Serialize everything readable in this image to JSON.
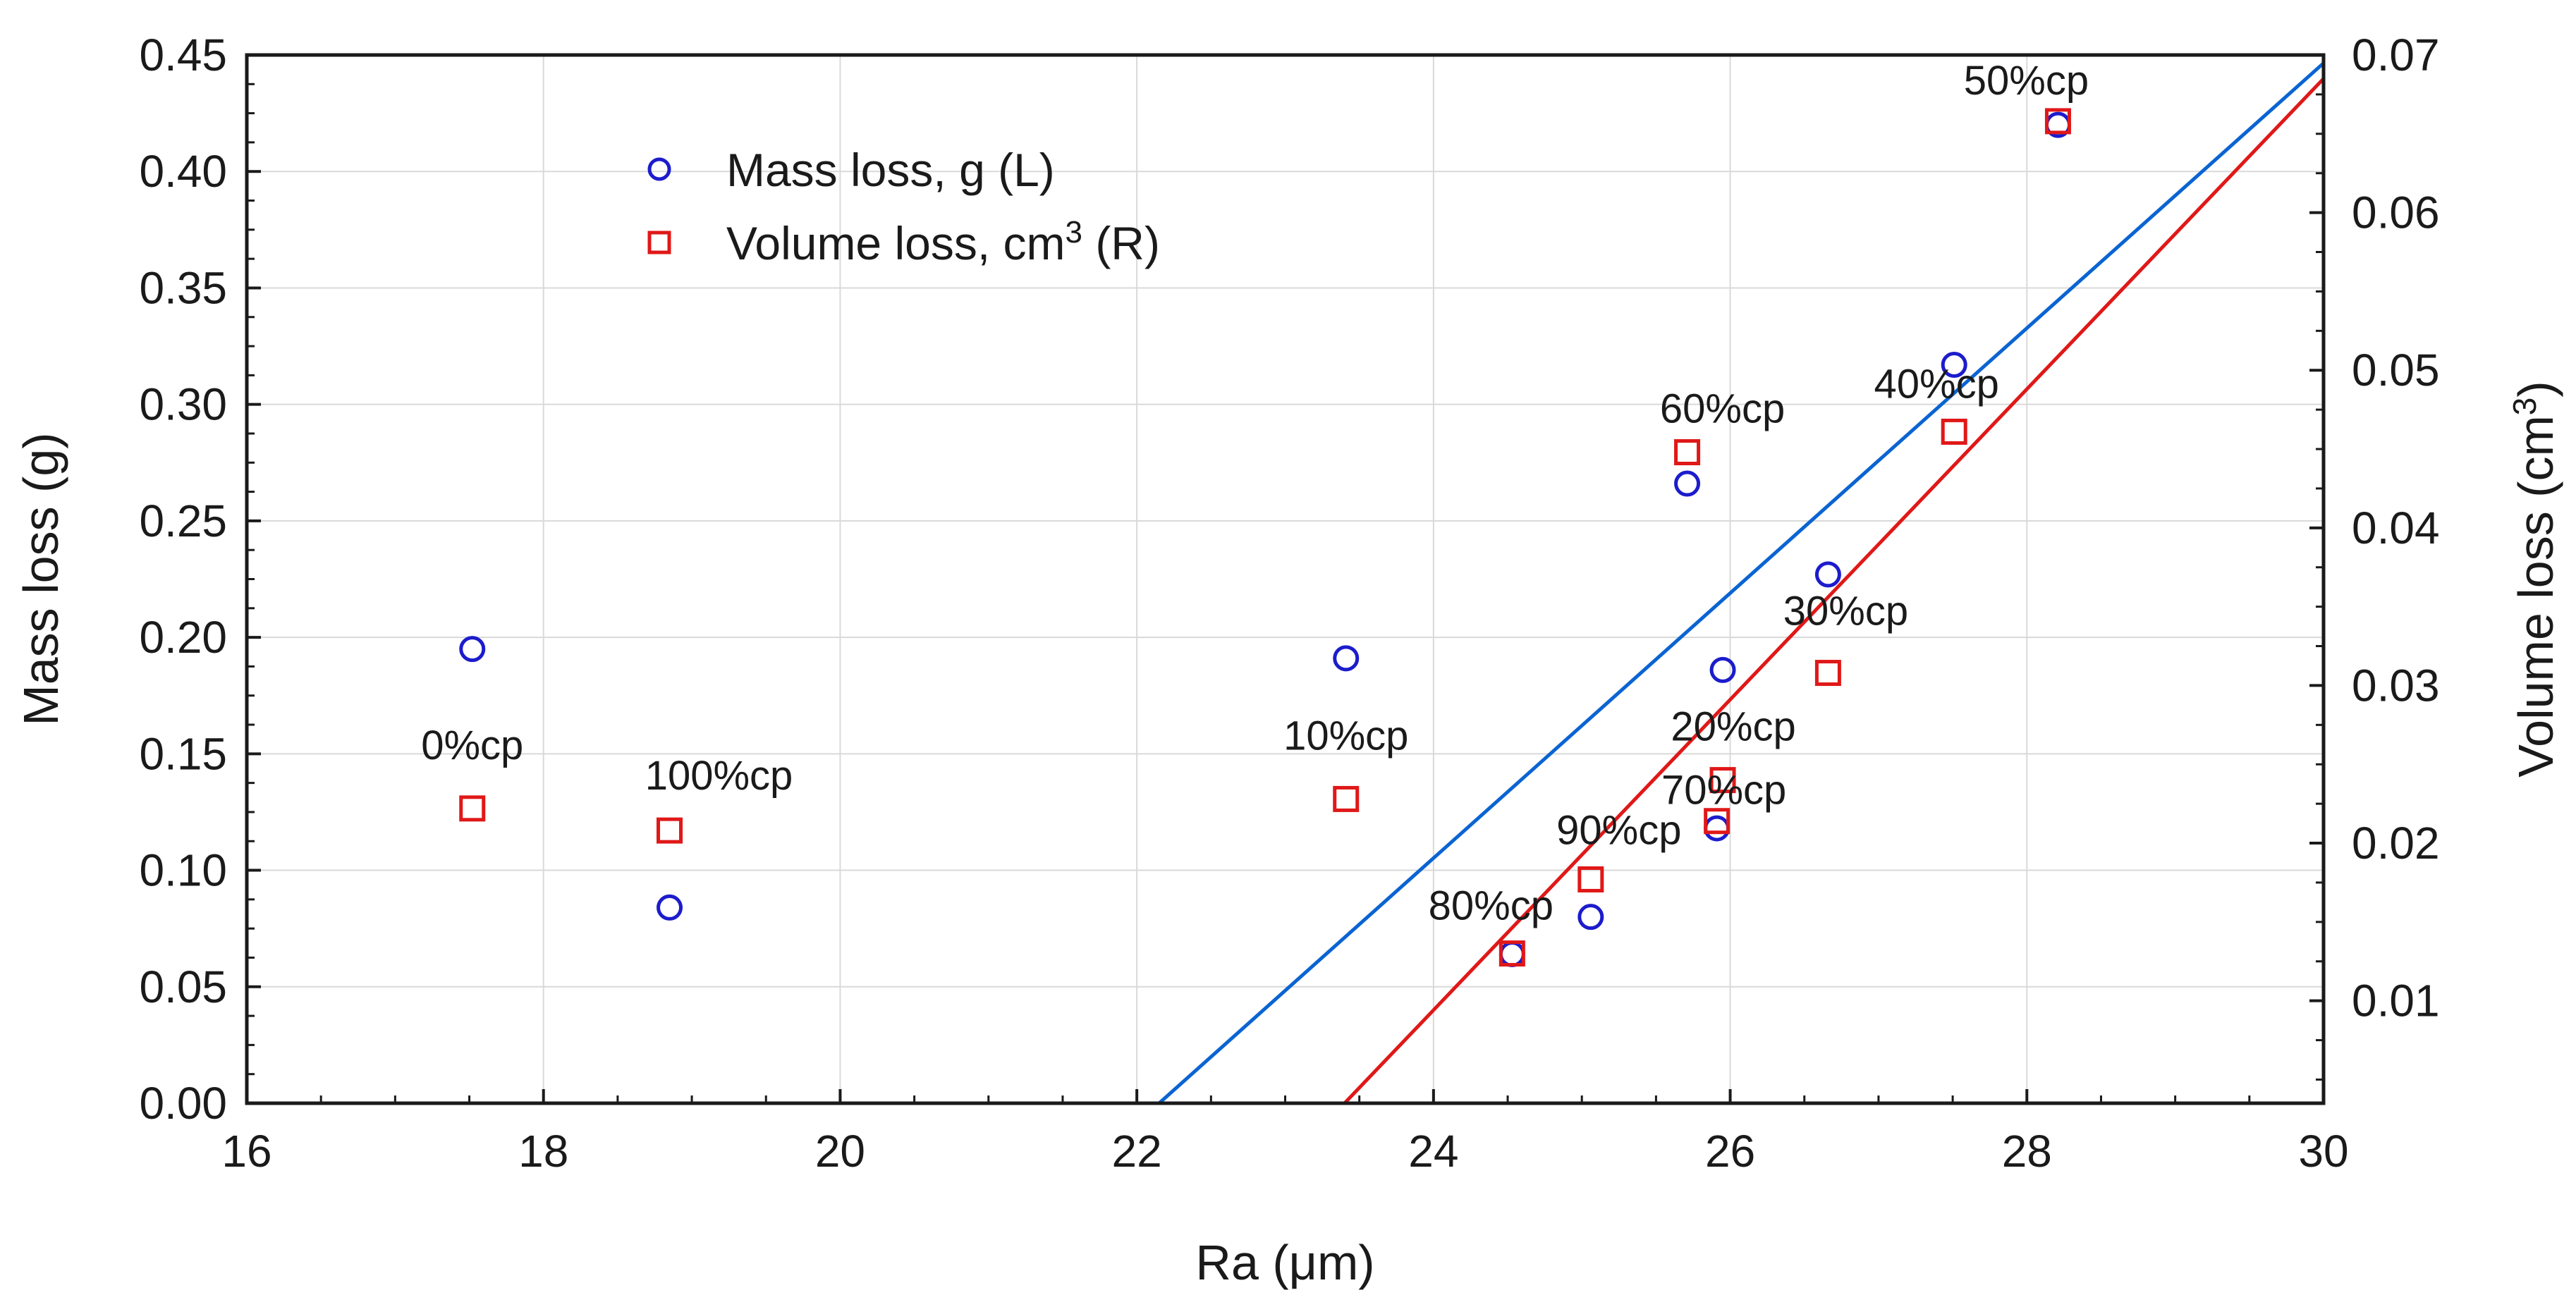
{
  "chart_data": {
    "type": "scatter",
    "title": "",
    "xlabel": "Ra (μm)",
    "ylabel_left": "Mass loss (g)",
    "ylabel_right_prefix": "Volume loss (cm",
    "ylabel_right_sup": "3",
    "ylabel_right_suffix": ")",
    "xlim": [
      16,
      30
    ],
    "ylim_left": [
      0.0,
      0.45
    ],
    "ylim_right": [
      0.0035,
      0.07
    ],
    "grid": true,
    "x_ticks": [
      "16",
      "18",
      "20",
      "22",
      "24",
      "26",
      "28",
      "30"
    ],
    "y_left_ticks": [
      "0.00",
      "0.05",
      "0.10",
      "0.15",
      "0.20",
      "0.25",
      "0.30",
      "0.35",
      "0.40",
      "0.45"
    ],
    "y_right_ticks": [
      "0.01",
      "0.02",
      "0.03",
      "0.04",
      "0.05",
      "0.06",
      "0.07"
    ],
    "legend_position": "top-left",
    "legend": [
      {
        "label": "Mass loss, g (L)",
        "label_prefix": "Mass loss, g (L)",
        "sup": "",
        "label_suffix": "",
        "marker": "circle",
        "color": "#1c1ccc"
      },
      {
        "label": "Volume loss, cm3 (R)",
        "label_prefix": "Volume loss, cm",
        "sup": "3",
        "label_suffix": " (R)",
        "marker": "square",
        "color": "#e01818"
      }
    ],
    "series": [
      {
        "name": "Mass loss, g (L)",
        "axis": "left",
        "marker": "circle",
        "color": "#1c1ccc",
        "points": [
          {
            "x": 17.52,
            "y": 0.195
          },
          {
            "x": 18.85,
            "y": 0.084
          },
          {
            "x": 23.41,
            "y": 0.191
          },
          {
            "x": 24.53,
            "y": 0.064
          },
          {
            "x": 25.06,
            "y": 0.08
          },
          {
            "x": 25.71,
            "y": 0.266
          },
          {
            "x": 25.91,
            "y": 0.118
          },
          {
            "x": 25.95,
            "y": 0.186
          },
          {
            "x": 26.66,
            "y": 0.227
          },
          {
            "x": 27.51,
            "y": 0.317
          },
          {
            "x": 28.21,
            "y": 0.42
          }
        ]
      },
      {
        "name": "Volume loss, cm3 (R)",
        "axis": "right",
        "marker": "square",
        "color": "#e01818",
        "points": [
          {
            "x": 17.52,
            "y": 0.0222,
            "label": "0%cp"
          },
          {
            "x": 18.85,
            "y": 0.0208,
            "label": "100%cp"
          },
          {
            "x": 23.41,
            "y": 0.0228,
            "label": "10%cp"
          },
          {
            "x": 24.53,
            "y": 0.013,
            "label": "80%cp"
          },
          {
            "x": 25.06,
            "y": 0.0177,
            "label": "90%cp"
          },
          {
            "x": 25.71,
            "y": 0.0448,
            "label": "60%cp"
          },
          {
            "x": 25.91,
            "y": 0.0214,
            "label": "70%cp"
          },
          {
            "x": 25.95,
            "y": 0.024,
            "label": "20%cp"
          },
          {
            "x": 26.66,
            "y": 0.0308,
            "label": "30%cp"
          },
          {
            "x": 27.51,
            "y": 0.0461,
            "label": "40%cp"
          },
          {
            "x": 28.21,
            "y": 0.0658,
            "label": "50%cp"
          }
        ]
      }
    ],
    "fit_lines": [
      {
        "name": "Mass loss fit",
        "axis": "left",
        "color": "#0a64d2",
        "from": {
          "x": 22.15,
          "y": 0.0
        },
        "to": {
          "x": 30.0,
          "y": 0.4465
        }
      },
      {
        "name": "Volume loss fit",
        "axis": "right",
        "color": "#e01818",
        "from": {
          "x": 23.4,
          "y": 0.0035
        },
        "to": {
          "x": 30.0,
          "y": 0.0685
        }
      }
    ]
  }
}
